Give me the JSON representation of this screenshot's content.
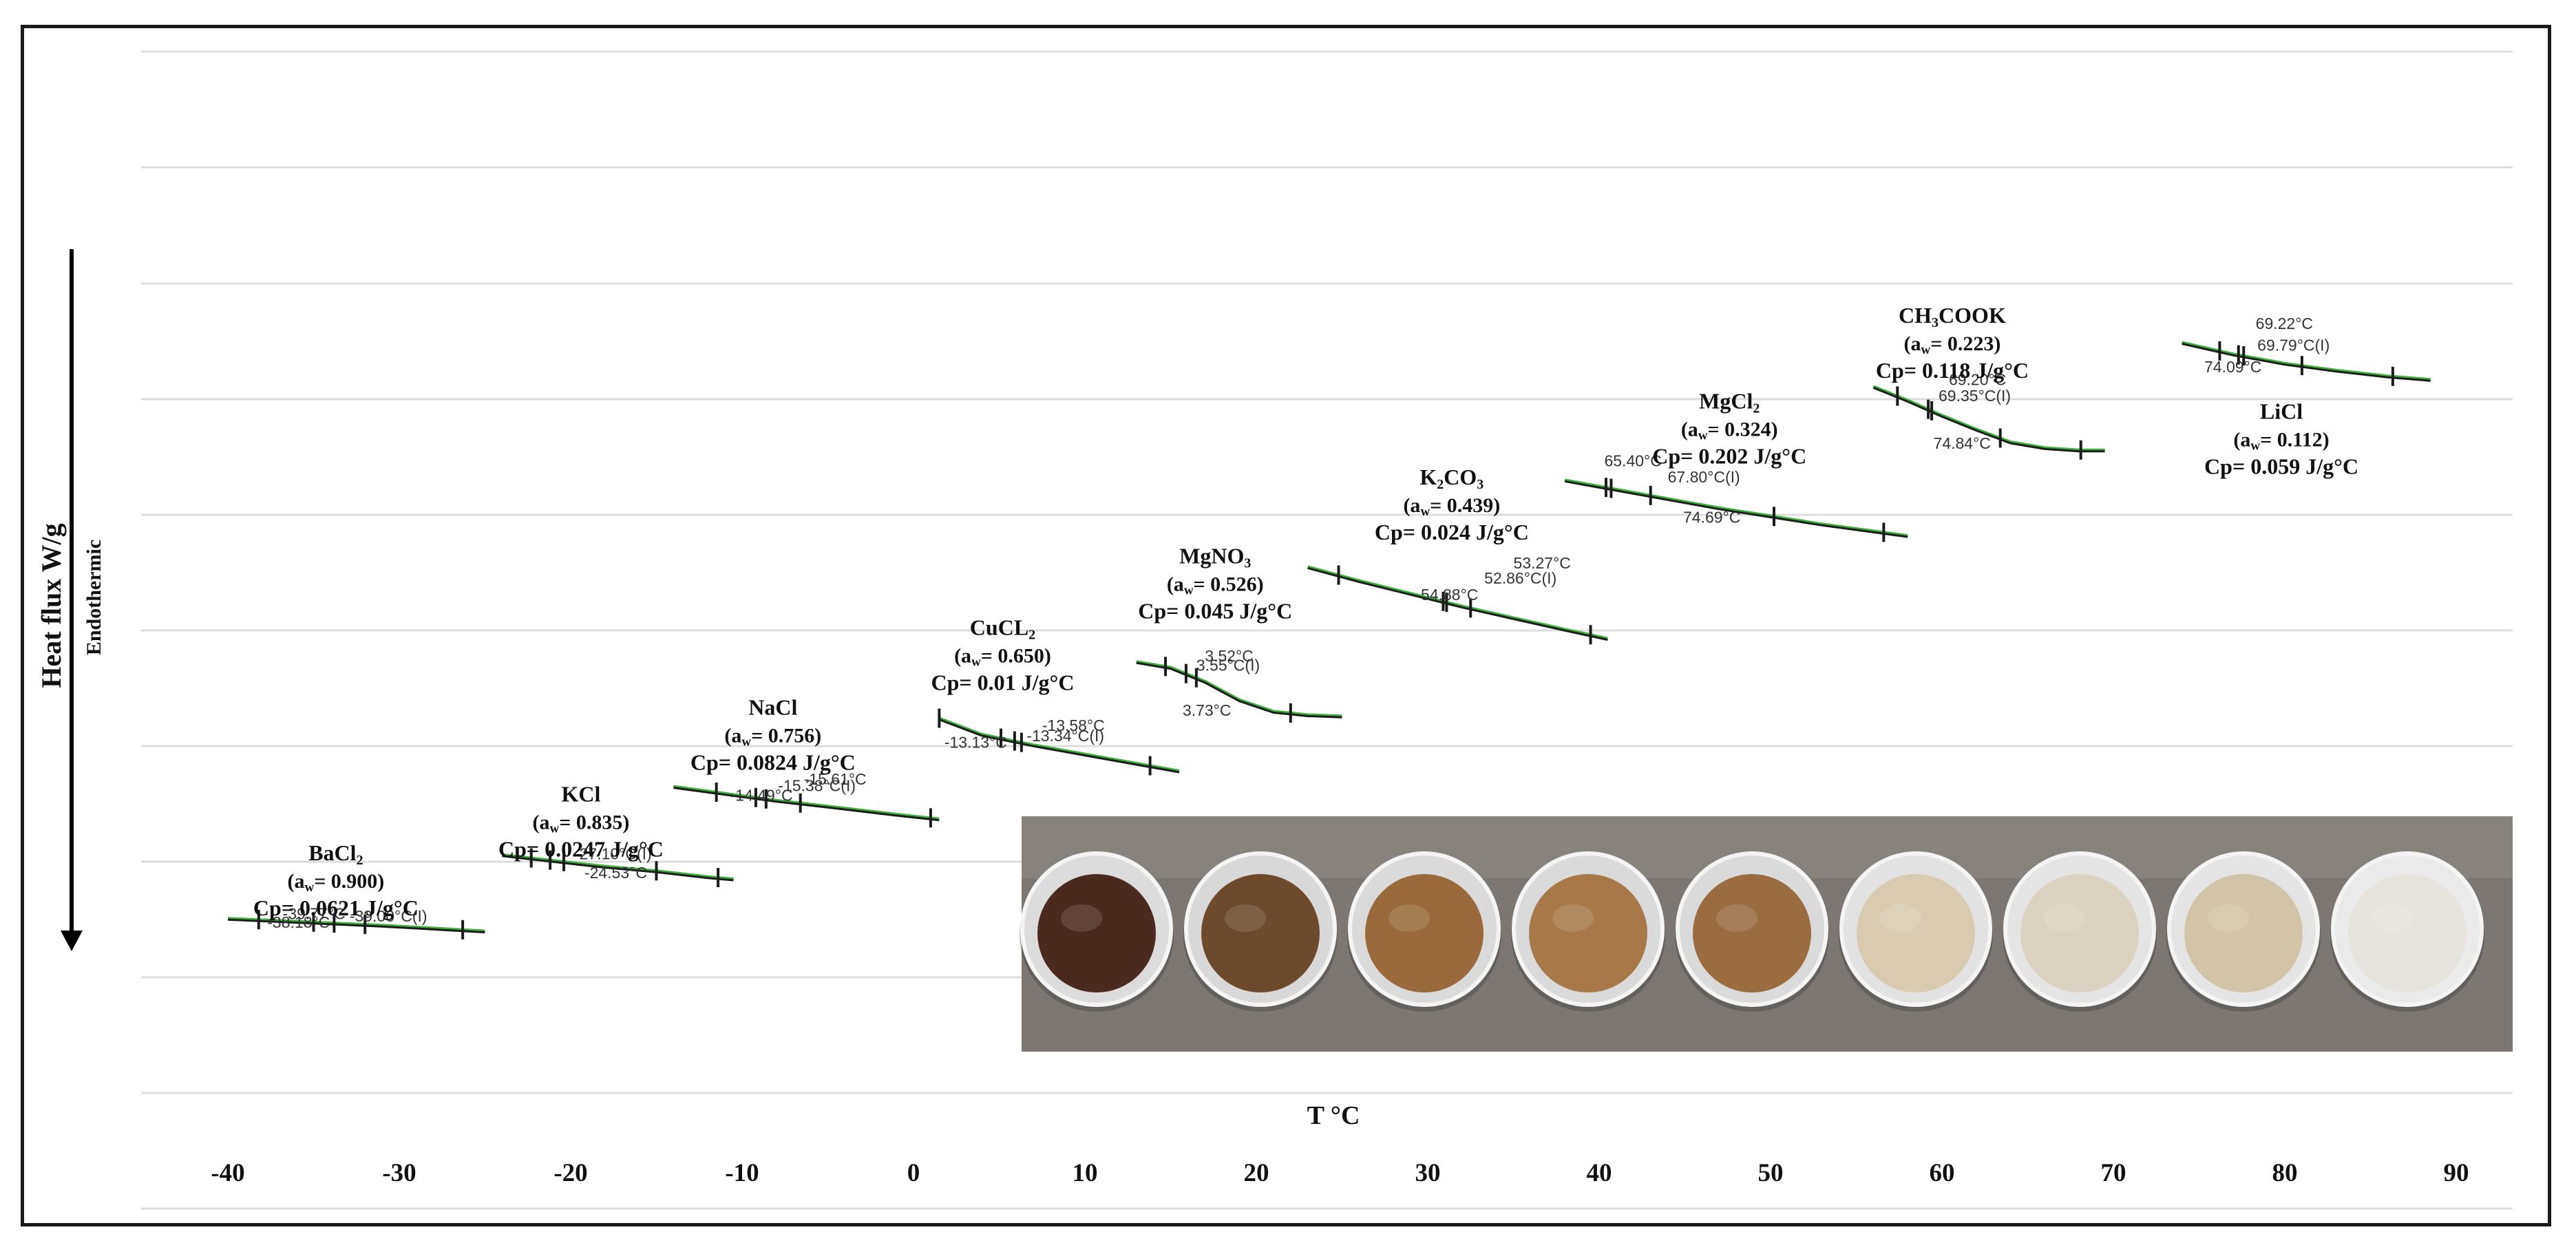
{
  "chart_data": {
    "type": "line",
    "title": "",
    "xlabel": "T °C",
    "ylabel": "Heat flux  W/g",
    "ylabel_annotation": "Endothermic",
    "xlim": [
      -45,
      95
    ],
    "xticks": [
      "-40",
      "-30",
      "-20",
      "-10",
      "0",
      "10",
      "20",
      "30",
      "40",
      "50",
      "60",
      "70",
      "80",
      "90"
    ],
    "grid": true,
    "legend": "none",
    "series": [
      {
        "name": "BaCl2",
        "name_main": "BaCl",
        "name_sub": "2",
        "aw": "(aw= 0.900)",
        "cp": "Cp= 0.0621 J/g°C",
        "x": [
          -40,
          -37,
          -34,
          -31,
          -28,
          -25
        ],
        "y": [
          0.62,
          0.64,
          0.66,
          0.68,
          0.705,
          0.73
        ],
        "ticks": [
          -38.2,
          -35,
          -33.8,
          -32,
          -26.3
        ],
        "annotations": [
          {
            "text": "-39.77°C",
            "x": -36.8,
            "y": 0.628,
            "anchor": "start"
          },
          {
            "text": "-39.00°C(I)",
            "x": -32.9,
            "y": 0.65,
            "anchor": "start"
          },
          {
            "text": "-38.18°C",
            "x": -37.7,
            "y": 0.702,
            "anchor": "start"
          }
        ],
        "label_pos": {
          "x": -33.7,
          "y": 0.12
        }
      },
      {
        "name": "KCl",
        "name_main": "KCl",
        "name_sub": "",
        "aw": "(aw= 0.835)",
        "cp": "Cp= 0.0247 J/g°C",
        "x": [
          -24,
          -21,
          -18,
          -15,
          -12,
          -10.5
        ],
        "y": [
          0.07,
          0.12,
          0.17,
          0.21,
          0.26,
          0.28
        ],
        "ticks": [
          -22.3,
          -21.2,
          -20.4,
          -15,
          -11.4
        ],
        "annotations": [
          {
            "text": "-27.10°C(I)",
            "x": -19.8,
            "y": 0.11,
            "anchor": "start"
          },
          {
            "text": "-24.53°C",
            "x": -19.2,
            "y": 0.275,
            "anchor": "start"
          }
        ],
        "label_pos": {
          "x": -19.4,
          "y": -0.39
        }
      },
      {
        "name": "NaCl",
        "name_main": "NaCl",
        "name_sub": "",
        "aw": "(aw= 0.756)",
        "cp": "Cp= 0.0824 J/g°C",
        "x": [
          -14,
          -11,
          -8,
          -5,
          -1,
          1.5
        ],
        "y": [
          -0.52,
          -0.46,
          -0.4,
          -0.35,
          -0.28,
          -0.24
        ],
        "ticks": [
          -11.5,
          -9.2,
          -8.6,
          -6.6,
          1
        ],
        "annotations": [
          {
            "text": "-15.61°C",
            "x": -6.4,
            "y": -0.535,
            "anchor": "start"
          },
          {
            "text": "-15.38°C(I)",
            "x": -7.9,
            "y": -0.48,
            "anchor": "start"
          },
          {
            "text": "-14.49°C",
            "x": -10.7,
            "y": -0.395,
            "anchor": "start"
          }
        ],
        "label_pos": {
          "x": -8.2,
          "y": -1.14
        }
      },
      {
        "name": "CuCL2",
        "name_main": "CuCL",
        "name_sub": "2",
        "aw": "(aw= 0.650)",
        "cp": "Cp= 0.01 J/g°C",
        "x": [
          1.5,
          4,
          7,
          10,
          13,
          15.5
        ],
        "y": [
          -1.11,
          -0.97,
          -0.88,
          -0.8,
          -0.72,
          -0.655
        ],
        "ticks": [
          1.5,
          5.1,
          5.9,
          6.3,
          13.8
        ],
        "annotations": [
          {
            "text": "-13.58°C",
            "x": 7.5,
            "y": -1.0,
            "anchor": "start"
          },
          {
            "text": "-13.34°C(I)",
            "x": 6.6,
            "y": -0.91,
            "anchor": "start"
          },
          {
            "text": "-13.13°C",
            "x": 1.8,
            "y": -0.855,
            "anchor": "start"
          }
        ],
        "label_pos": {
          "x": 5.2,
          "y": -1.83
        }
      },
      {
        "name": "MgNO3",
        "name_main": "MgNO",
        "name_sub": "3",
        "aw": "(aw= 0.526)",
        "cp": "Cp= 0.045  J/g°C",
        "x": [
          13,
          15,
          17,
          19,
          21,
          23,
          25
        ],
        "y": [
          -1.6,
          -1.55,
          -1.43,
          -1.27,
          -1.17,
          -1.14,
          -1.13
        ],
        "ticks": [
          14.7,
          15.9,
          16.5,
          22
        ],
        "annotations": [
          {
            "text": "3.52°C",
            "x": 17,
            "y": -1.6,
            "anchor": "start"
          },
          {
            "text": "3.55°C(I)",
            "x": 16.5,
            "y": -1.52,
            "anchor": "start"
          },
          {
            "text": "3.73°C",
            "x": 15.7,
            "y": -1.13,
            "anchor": "start"
          }
        ],
        "label_pos": {
          "x": 17.6,
          "y": -2.45
        }
      },
      {
        "name": "K2CO3",
        "name_main": "K",
        "name_sub": "2",
        "name_tail": "CO",
        "name_sub2": "3",
        "aw": "(aw= 0.439)",
        "cp": "Cp= 0.024 J/g°C",
        "x": [
          23,
          26,
          29,
          32,
          35,
          38,
          40.5
        ],
        "y": [
          -2.42,
          -2.3,
          -2.19,
          -2.08,
          -1.98,
          -1.88,
          -1.8
        ],
        "ticks": [
          24.8,
          30.9,
          31.1,
          32.5,
          39.5
        ],
        "annotations": [
          {
            "text": "53.27°C",
            "x": 35,
            "y": -2.405,
            "anchor": "start"
          },
          {
            "text": "52.86°C(I)",
            "x": 33.3,
            "y": -2.275,
            "anchor": "start"
          },
          {
            "text": "54.88°C",
            "x": 29.6,
            "y": -2.13,
            "anchor": "start"
          }
        ],
        "label_pos": {
          "x": 31.4,
          "y": -3.13
        }
      },
      {
        "name": "MgCl2",
        "name_main": "MgCl",
        "name_sub": "2",
        "aw": "(aw= 0.324)",
        "cp": "Cp= 0.202 J/g°C",
        "x": [
          38,
          41,
          44,
          47,
          50,
          53,
          56,
          58
        ],
        "y": [
          -3.17,
          -3.09,
          -3.01,
          -2.93,
          -2.86,
          -2.79,
          -2.73,
          -2.69
        ],
        "ticks": [
          40.4,
          40.7,
          43,
          50.2,
          56.6
        ],
        "annotations": [
          {
            "text": "65.40°C",
            "x": 40.3,
            "y": -3.29,
            "anchor": "start"
          },
          {
            "text": "67.80°C(I)",
            "x": 44,
            "y": -3.15,
            "anchor": "start"
          },
          {
            "text": "74.69°C",
            "x": 44.9,
            "y": -2.8,
            "anchor": "start"
          }
        ],
        "label_pos": {
          "x": 47.6,
          "y": -3.79
        }
      },
      {
        "name": "CH3COOK",
        "name_main": "CH",
        "name_sub": "3",
        "name_tail": "COOK",
        "name_sub2": "",
        "aw": "(aw= 0.223)",
        "cp": "Cp= 0.118 J/g°C",
        "x": [
          56,
          58,
          60,
          62,
          64,
          66,
          68,
          69.5
        ],
        "y": [
          -3.98,
          -3.86,
          -3.73,
          -3.61,
          -3.5,
          -3.45,
          -3.43,
          -3.43
        ],
        "ticks": [
          57.4,
          59.2,
          59.4,
          63.4,
          68.1
        ],
        "annotations": [
          {
            "text": "69.20°C",
            "x": 60.4,
            "y": -3.99,
            "anchor": "start"
          },
          {
            "text": "69.35°C(I)",
            "x": 59.8,
            "y": -3.85,
            "anchor": "start"
          },
          {
            "text": "74.84°C",
            "x": 59.5,
            "y": -3.44,
            "anchor": "start"
          }
        ],
        "label_pos": {
          "x": 60.6,
          "y": -4.53
        }
      },
      {
        "name": "LiCl",
        "name_main": "LiCl",
        "name_sub": "",
        "aw": "(aw= 0.112)",
        "cp": "Cp= 0.059 J/g°C",
        "x": [
          74,
          77,
          80,
          83,
          86,
          88.5
        ],
        "y": [
          -4.36,
          -4.26,
          -4.18,
          -4.12,
          -4.07,
          -4.04
        ],
        "ticks": [
          76.2,
          77.3,
          77.6,
          81,
          86.3
        ],
        "annotations": [
          {
            "text": "69.22°C",
            "x": 78.3,
            "y": -4.475,
            "anchor": "start"
          },
          {
            "text": "69.79°C(I)",
            "x": 78.4,
            "y": -4.29,
            "anchor": "start"
          },
          {
            "text": "74.09°C",
            "x": 75.3,
            "y": -4.1,
            "anchor": "start"
          }
        ],
        "label_pos": {
          "x": 79.8,
          "y": -3.7
        }
      }
    ]
  },
  "photo": {
    "description_label": "sample-photo",
    "cups": [
      {
        "fill": "#4a2a1e",
        "rim": "#dcdcdc"
      },
      {
        "fill": "#6e4a2c",
        "rim": "#d8d8d8"
      },
      {
        "fill": "#9a6a3c",
        "rim": "#dadada"
      },
      {
        "fill": "#a87848",
        "rim": "#dadada"
      },
      {
        "fill": "#9a6c40",
        "rim": "#dadada"
      },
      {
        "fill": "#d8cbb2",
        "rim": "#e2e2e2"
      },
      {
        "fill": "#dcd2c2",
        "rim": "#e4e4e4"
      },
      {
        "fill": "#d2c4a8",
        "rim": "#e4e4e4"
      },
      {
        "fill": "#e6e2dc",
        "rim": "#eaeaea"
      }
    ]
  },
  "colors": {
    "curve": "#1c1c1c",
    "fit": "#3fae3f",
    "grid": "#dddddd",
    "text": "#111111",
    "annotation": "#333333"
  }
}
